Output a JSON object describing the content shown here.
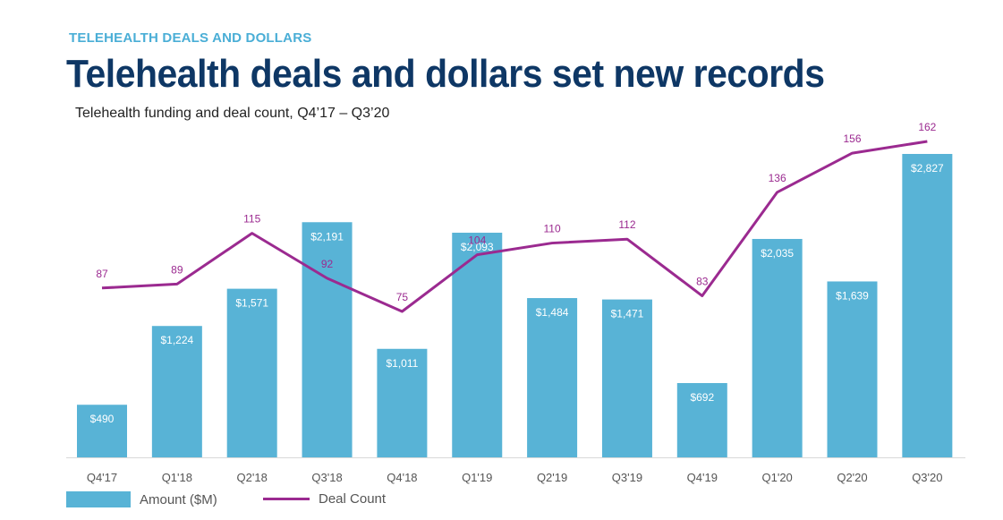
{
  "header": {
    "kicker": "TELEHEALTH DEALS AND DOLLARS",
    "title": "Telehealth deals and dollars set new records",
    "subtitle": "Telehealth funding and deal count, Q4’17 – Q3’20"
  },
  "colors": {
    "kicker": "#4aaed6",
    "title": "#0e3765",
    "bar": "#58b3d6",
    "line": "#9b2a90"
  },
  "chart_data": {
    "type": "bar",
    "title": "Telehealth funding and deal count, Q4’17 – Q3’20",
    "categories": [
      "Q4'17",
      "Q1'18",
      "Q2'18",
      "Q3'18",
      "Q4'18",
      "Q1'19",
      "Q2'19",
      "Q3'19",
      "Q4'19",
      "Q1'20",
      "Q2'20",
      "Q3'20"
    ],
    "series": [
      {
        "name": "Amount ($M)",
        "kind": "bar",
        "values": [
          490,
          1224,
          1571,
          2191,
          1011,
          2093,
          1484,
          1471,
          692,
          2035,
          1639,
          2827
        ],
        "labels": [
          "$490",
          "$1,224",
          "$1,571",
          "$2,191",
          "$1,011",
          "$2,093",
          "$1,484",
          "$1,471",
          "$692",
          "$2,035",
          "$1,639",
          "$2,827"
        ]
      },
      {
        "name": "Deal Count",
        "kind": "line",
        "values": [
          87,
          89,
          115,
          92,
          75,
          104,
          110,
          112,
          83,
          136,
          156,
          162
        ],
        "labels": [
          "87",
          "89",
          "115",
          "92",
          "75",
          "104",
          "110",
          "112",
          "83",
          "136",
          "156",
          "162"
        ]
      }
    ],
    "bar_axis_range": [
      0,
      2827
    ],
    "line_axis_range": [
      0,
      162
    ],
    "grid": false,
    "legend_position": "bottom-left"
  },
  "legend": {
    "bar_label": "Amount ($M)",
    "line_label": "Deal Count"
  }
}
